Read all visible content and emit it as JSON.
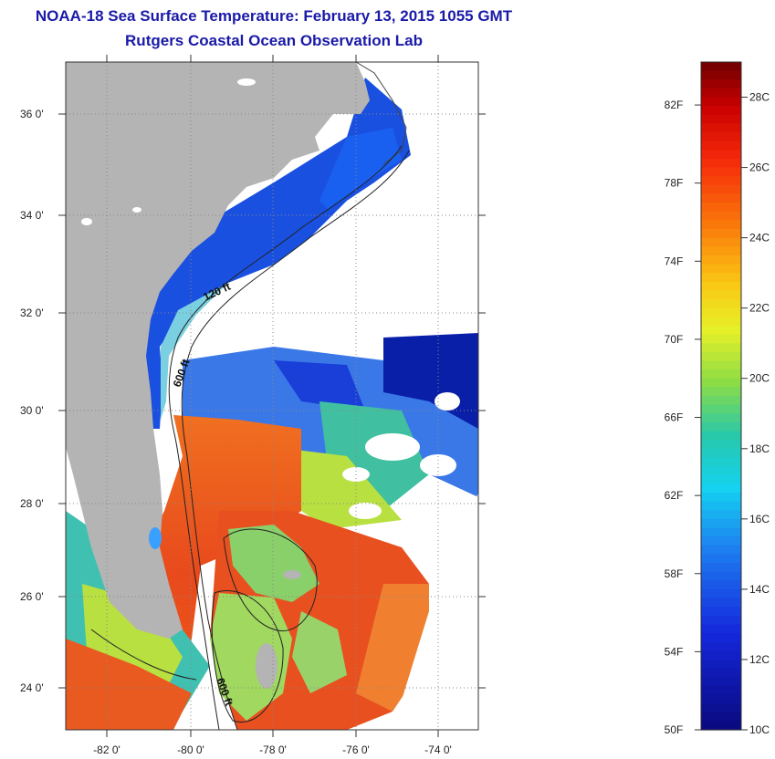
{
  "title_line1": "NOAA-18 Sea Surface Temperature:  February 13, 2015 1055 GMT",
  "title_line2": "Rutgers Coastal Ocean Observation Lab",
  "map": {
    "lat_labels": [
      "36 0'",
      "34 0'",
      "32 0'",
      "30 0'",
      "28 0'",
      "26 0'",
      "24 0'"
    ],
    "lon_labels": [
      "-82 0'",
      "-80 0'",
      "-78 0'",
      "-76 0'",
      "-74 0'"
    ],
    "lat_range": [
      23,
      37
    ],
    "lon_range": [
      -83,
      -73
    ],
    "contour_labels": [
      "120 ft",
      "600 ft",
      "600 ft"
    ],
    "colors": {
      "land": "#b4b4b4",
      "cloud": "#ffffff",
      "cold": "#0a1fa8",
      "warm": "#e8401a"
    }
  },
  "colorbar": {
    "min_c": 10,
    "max_c": 29,
    "f_labels": [
      "82F",
      "78F",
      "74F",
      "70F",
      "66F",
      "62F",
      "58F",
      "54F",
      "50F"
    ],
    "c_labels": [
      "28C",
      "26C",
      "24C",
      "22C",
      "20C",
      "18C",
      "16C",
      "14C",
      "12C",
      "10C"
    ]
  }
}
